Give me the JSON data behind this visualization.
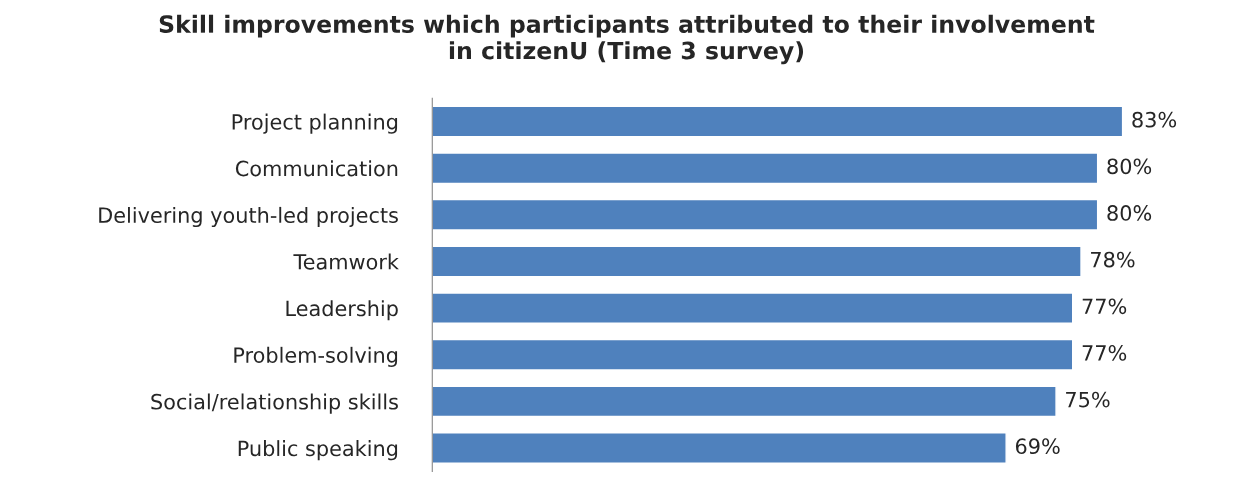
{
  "chart_data": {
    "type": "bar",
    "orientation": "horizontal",
    "title": "Skill improvements which participants attributed to their involvement\nin citizenU (Time 3 survey)",
    "categories": [
      "Project planning",
      "Communication",
      "Delivering youth-led projects",
      "Teamwork",
      "Leadership",
      "Problem-solving",
      "Social/relationship skills",
      "Public speaking"
    ],
    "values": [
      83,
      80,
      80,
      78,
      77,
      77,
      75,
      69
    ],
    "value_labels": [
      "83%",
      "80%",
      "80%",
      "78%",
      "77%",
      "77%",
      "75%",
      "69%"
    ],
    "color": "#4f81bd",
    "grid": false,
    "legend": false
  }
}
